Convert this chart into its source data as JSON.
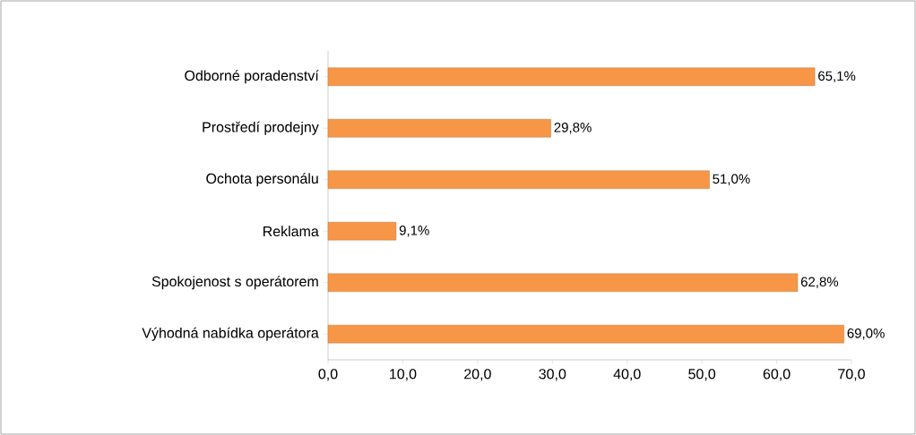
{
  "chart_data": {
    "type": "bar",
    "orientation": "horizontal",
    "categories": [
      "Odborné poradenství",
      "Prostředí prodejny",
      "Ochota personálu",
      "Reklama",
      "Spokojenost s operátorem",
      "Výhodná nabídka operátora"
    ],
    "values": [
      65.1,
      29.8,
      51.0,
      9.1,
      62.8,
      69.0
    ],
    "value_labels": [
      "65,1%",
      "29,8%",
      "51,0%",
      "9,1%",
      "62,8%",
      "69,0%"
    ],
    "color": "#f79646",
    "xlim": [
      0,
      70
    ],
    "xticks": [
      {
        "value": 0,
        "label": "0,0"
      },
      {
        "value": 10,
        "label": "10,0"
      },
      {
        "value": 20,
        "label": "20,0"
      },
      {
        "value": 30,
        "label": "30,0"
      },
      {
        "value": 40,
        "label": "40,0"
      },
      {
        "value": 50,
        "label": "50,0"
      },
      {
        "value": 60,
        "label": "60,0"
      },
      {
        "value": 70,
        "label": "70,0"
      }
    ],
    "grid": false
  }
}
